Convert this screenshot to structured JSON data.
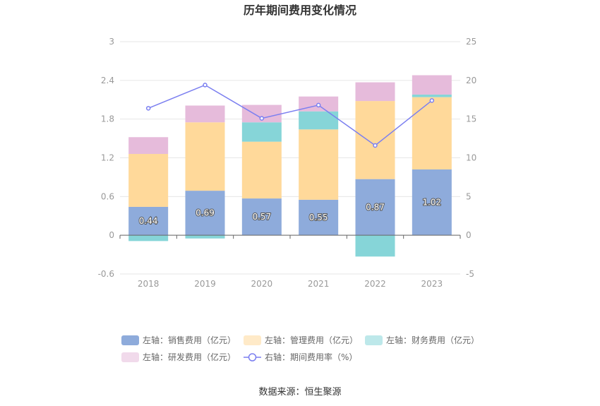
{
  "chart_data": {
    "type": "stacked-bar-line",
    "title": "历年期间费用变化情况",
    "categories": [
      "2018",
      "2019",
      "2020",
      "2021",
      "2022",
      "2023"
    ],
    "left_axis": {
      "min": -0.6,
      "max": 3,
      "ticks": [
        "3",
        "2.4",
        "1.8",
        "1.2",
        "0.6",
        "0",
        "-0.6"
      ],
      "tick_values": [
        3,
        2.4,
        1.8,
        1.2,
        0.6,
        0,
        -0.6
      ]
    },
    "right_axis": {
      "min": -5,
      "max": 25,
      "ticks": [
        "25",
        "20",
        "15",
        "10",
        "5",
        "0",
        "-5"
      ],
      "tick_values": [
        25,
        20,
        15,
        10,
        5,
        0,
        -5
      ]
    },
    "series": [
      {
        "name": "左轴：销售费用（亿元）",
        "axis": "left",
        "type": "bar",
        "color": "#8eabdb",
        "values": [
          0.44,
          0.69,
          0.57,
          0.55,
          0.87,
          1.02
        ],
        "labels": [
          "0.44",
          "0.69",
          "0.57",
          "0.55",
          "0.87",
          "1.02"
        ]
      },
      {
        "name": "左轴：管理费用（亿元）",
        "axis": "left",
        "type": "bar",
        "color": "#ffd99a",
        "values": [
          0.82,
          1.06,
          0.88,
          1.09,
          1.21,
          1.12
        ]
      },
      {
        "name": "左轴：财务费用（亿元）",
        "axis": "left",
        "type": "bar",
        "color": "#86d5d8",
        "values": [
          -0.09,
          -0.05,
          0.3,
          0.28,
          -0.33,
          0.04
        ]
      },
      {
        "name": "左轴：研发费用（亿元）",
        "axis": "left",
        "type": "bar",
        "color": "#e6bbdb",
        "values": [
          0.26,
          0.26,
          0.27,
          0.23,
          0.29,
          0.3
        ]
      },
      {
        "name": "右轴：期间费用率（%）",
        "axis": "right",
        "type": "line",
        "color": "#7b7ff0",
        "values": [
          16.4,
          19.4,
          15.1,
          16.8,
          11.6,
          17.4
        ]
      }
    ],
    "legend_position": "bottom",
    "grid": true
  },
  "source": "数据来源：恒生聚源"
}
